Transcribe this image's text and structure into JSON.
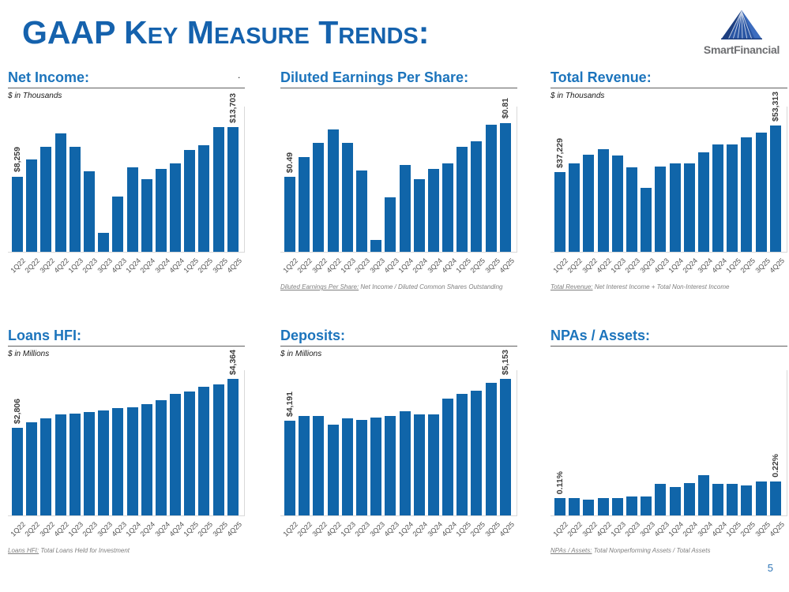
{
  "slide": {
    "title": "GAAP Key Measure Trends:",
    "page_number": "5",
    "stray_mark": "."
  },
  "logo": {
    "text": "SmartFinancial",
    "icon": "pyramid-triangle-icon",
    "triangle_color": "#2a56a4",
    "text_color": "#6d6e71"
  },
  "colors": {
    "title_blue": "#1562ad",
    "heading_blue": "#1c74bc",
    "bar_blue": "#1065a9",
    "axis_gray": "#d9d9d9",
    "footnote_gray": "#7f7f7f",
    "page_number_blue": "#2e75b6"
  },
  "chart_data": [
    {
      "type": "bar",
      "title": "Net Income:",
      "subtitle": "$ in Thousands",
      "categories": [
        "1Q22",
        "2Q22",
        "3Q22",
        "4Q22",
        "1Q23",
        "2Q23",
        "3Q23",
        "4Q23",
        "1Q24",
        "2Q24",
        "3Q24",
        "4Q24",
        "1Q25",
        "2Q25",
        "3Q25",
        "4Q25"
      ],
      "values": [
        8259,
        10100,
        11500,
        13000,
        11500,
        8800,
        2100,
        6100,
        9300,
        8000,
        9100,
        9700,
        11200,
        11700,
        13700,
        13703
      ],
      "first_label": "$8,259",
      "last_label": "$13,703",
      "ylim": [
        0,
        16000
      ],
      "grid": false,
      "legend": null,
      "footnote_label": "",
      "footnote_text": ""
    },
    {
      "type": "bar",
      "title": "Diluted Earnings Per Share:",
      "subtitle": "",
      "categories": [
        "1Q22",
        "2Q22",
        "3Q22",
        "4Q22",
        "1Q23",
        "2Q23",
        "3Q23",
        "4Q23",
        "1Q24",
        "2Q24",
        "3Q24",
        "4Q24",
        "1Q25",
        "2Q25",
        "3Q25",
        "4Q25"
      ],
      "values": [
        0.49,
        0.61,
        0.69,
        0.77,
        0.69,
        0.53,
        0.12,
        0.37,
        0.56,
        0.48,
        0.54,
        0.57,
        0.67,
        0.7,
        0.8,
        0.81
      ],
      "first_label": "$0.49",
      "last_label": "$0.81",
      "ylim": [
        0.05,
        0.91
      ],
      "grid": false,
      "legend": null,
      "footnote_label": "Diluted Earnings Per Share:",
      "footnote_text": " Net Income / Diluted Common Shares Outstanding"
    },
    {
      "type": "bar",
      "title": "Total Revenue:",
      "subtitle": "$ in Thousands",
      "categories": [
        "1Q22",
        "2Q22",
        "3Q22",
        "4Q22",
        "1Q23",
        "2Q23",
        "3Q23",
        "4Q23",
        "1Q24",
        "2Q24",
        "3Q24",
        "4Q24",
        "1Q25",
        "2Q25",
        "3Q25",
        "4Q25"
      ],
      "values": [
        37229,
        40300,
        43200,
        45100,
        43000,
        38800,
        31900,
        39300,
        40400,
        40400,
        44100,
        46800,
        46900,
        49200,
        50900,
        53313
      ],
      "first_label": "$37,229",
      "last_label": "$53,313",
      "ylim": [
        10000,
        60000
      ],
      "grid": false,
      "legend": null,
      "footnote_label": "Total Revenue:",
      "footnote_text": " Net Interest Income + Total Non-Interest Income"
    },
    {
      "type": "bar",
      "title": "Loans HFI:",
      "subtitle": "$ in Millions",
      "categories": [
        "1Q22",
        "2Q22",
        "3Q22",
        "4Q22",
        "1Q23",
        "2Q23",
        "3Q23",
        "4Q23",
        "1Q24",
        "2Q24",
        "3Q24",
        "4Q24",
        "1Q25",
        "2Q25",
        "3Q25",
        "4Q25"
      ],
      "values": [
        2806,
        2980,
        3100,
        3230,
        3250,
        3320,
        3375,
        3440,
        3465,
        3575,
        3700,
        3890,
        3980,
        4115,
        4205,
        4364
      ],
      "first_label": "$2,806",
      "last_label": "$4,364",
      "ylim": [
        0,
        4500
      ],
      "grid": false,
      "legend": null,
      "footnote_label": "Loans HFI:",
      "footnote_text": " Total Loans Held for Investment"
    },
    {
      "type": "bar",
      "title": "Deposits:",
      "subtitle": "$ in Millions",
      "categories": [
        "1Q22",
        "2Q22",
        "3Q22",
        "4Q22",
        "1Q23",
        "2Q23",
        "3Q23",
        "4Q23",
        "1Q24",
        "2Q24",
        "3Q24",
        "4Q24",
        "1Q25",
        "2Q25",
        "3Q25",
        "4Q25"
      ],
      "values": [
        4191,
        4295,
        4300,
        4100,
        4245,
        4205,
        4270,
        4295,
        4410,
        4330,
        4330,
        4700,
        4815,
        4890,
        5065,
        5153
      ],
      "first_label": "$4,191",
      "last_label": "$5,153",
      "ylim": [
        2000,
        5250
      ],
      "grid": false,
      "legend": null,
      "footnote_label": "",
      "footnote_text": ""
    },
    {
      "type": "bar",
      "title": "NPAs / Assets:",
      "subtitle": "",
      "categories": [
        "1Q22",
        "2Q22",
        "3Q22",
        "4Q22",
        "1Q23",
        "2Q23",
        "3Q23",
        "4Q23",
        "1Q24",
        "2Q24",
        "3Q24",
        "4Q24",
        "1Q25",
        "2Q25",
        "3Q25",
        "4Q25"
      ],
      "values": [
        0.11,
        0.11,
        0.1,
        0.11,
        0.11,
        0.12,
        0.12,
        0.2,
        0.18,
        0.21,
        0.26,
        0.2,
        0.2,
        0.19,
        0.22,
        0.22
      ],
      "first_label": "0.11%",
      "last_label": "0.22%",
      "ylim": [
        0,
        0.9
      ],
      "grid": false,
      "legend": null,
      "footnote_label": "NPAs / Assets:",
      "footnote_text": " Total Nonperforming Assets / Total Assets"
    }
  ]
}
